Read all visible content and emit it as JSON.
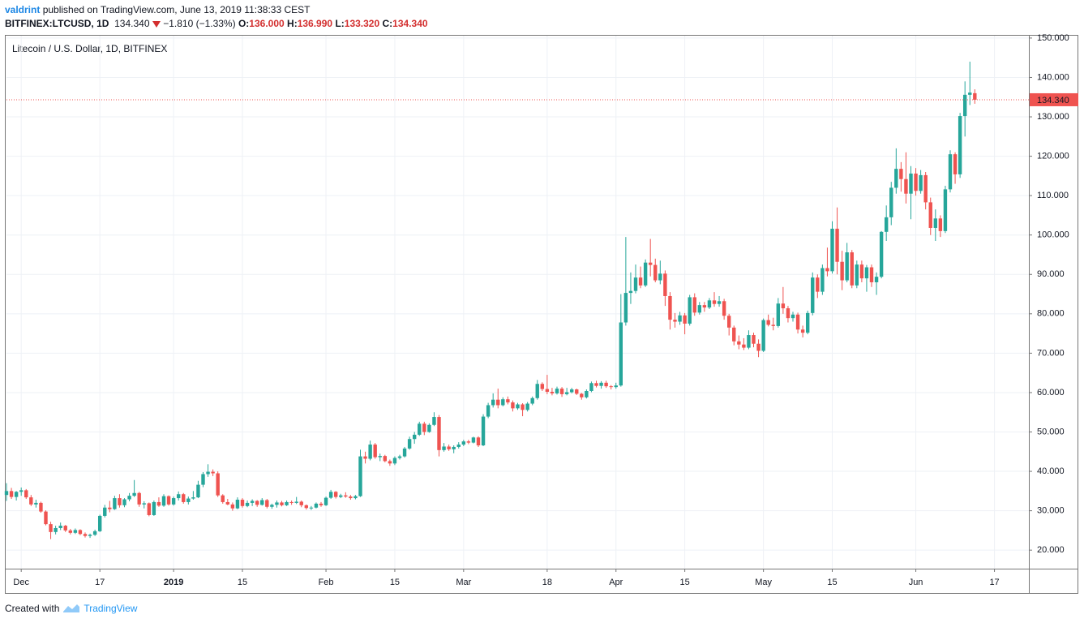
{
  "header": {
    "author": "valdrint",
    "published": "published on TradingView.com, June 13, 2019 11:38:33 CEST",
    "symbol": "BITFINEX:LTCUSD, 1D",
    "price": "134.340",
    "change": "−1.810 (−1.33%)",
    "ohlc": [
      {
        "key": "O:",
        "value": "136.000"
      },
      {
        "key": "H:",
        "value": "136.990"
      },
      {
        "key": "L:",
        "value": "133.320"
      },
      {
        "key": "C:",
        "value": "134.340"
      }
    ]
  },
  "footer": {
    "text": "Created with",
    "brand": "TradingView"
  },
  "chart_data": {
    "type": "candlestick",
    "title": "Litecoin / U.S. Dollar, 1D, BITFINEX",
    "up_color": "#26a69a",
    "down_color": "#ef5350",
    "grid": true,
    "x": [
      "2018-11-28",
      "2018-11-29",
      "2018-11-30",
      "2018-12-01",
      "2018-12-02",
      "2018-12-03",
      "2018-12-04",
      "2018-12-05",
      "2018-12-06",
      "2018-12-07",
      "2018-12-08",
      "2018-12-09",
      "2018-12-10",
      "2018-12-11",
      "2018-12-12",
      "2018-12-13",
      "2018-12-14",
      "2018-12-15",
      "2018-12-16",
      "2018-12-17",
      "2018-12-18",
      "2018-12-19",
      "2018-12-20",
      "2018-12-21",
      "2018-12-22",
      "2018-12-23",
      "2018-12-24",
      "2018-12-25",
      "2018-12-26",
      "2018-12-27",
      "2018-12-28",
      "2018-12-29",
      "2018-12-30",
      "2018-12-31",
      "2019-01-01",
      "2019-01-02",
      "2019-01-03",
      "2019-01-04",
      "2019-01-05",
      "2019-01-06",
      "2019-01-07",
      "2019-01-08",
      "2019-01-09",
      "2019-01-10",
      "2019-01-11",
      "2019-01-12",
      "2019-01-13",
      "2019-01-14",
      "2019-01-15",
      "2019-01-16",
      "2019-01-17",
      "2019-01-18",
      "2019-01-19",
      "2019-01-20",
      "2019-01-21",
      "2019-01-22",
      "2019-01-23",
      "2019-01-24",
      "2019-01-25",
      "2019-01-26",
      "2019-01-27",
      "2019-01-28",
      "2019-01-29",
      "2019-01-30",
      "2019-01-31",
      "2019-02-01",
      "2019-02-02",
      "2019-02-03",
      "2019-02-04",
      "2019-02-05",
      "2019-02-06",
      "2019-02-07",
      "2019-02-08",
      "2019-02-09",
      "2019-02-10",
      "2019-02-11",
      "2019-02-12",
      "2019-02-13",
      "2019-02-14",
      "2019-02-15",
      "2019-02-16",
      "2019-02-17",
      "2019-02-18",
      "2019-02-19",
      "2019-02-20",
      "2019-02-21",
      "2019-02-22",
      "2019-02-23",
      "2019-02-24",
      "2019-02-25",
      "2019-02-26",
      "2019-02-27",
      "2019-02-28",
      "2019-03-01",
      "2019-03-02",
      "2019-03-03",
      "2019-03-04",
      "2019-03-05",
      "2019-03-06",
      "2019-03-07",
      "2019-03-08",
      "2019-03-09",
      "2019-03-10",
      "2019-03-11",
      "2019-03-12",
      "2019-03-13",
      "2019-03-14",
      "2019-03-15",
      "2019-03-16",
      "2019-03-17",
      "2019-03-18",
      "2019-03-19",
      "2019-03-20",
      "2019-03-21",
      "2019-03-22",
      "2019-03-23",
      "2019-03-24",
      "2019-03-25",
      "2019-03-26",
      "2019-03-27",
      "2019-03-28",
      "2019-03-29",
      "2019-03-30",
      "2019-03-31",
      "2019-04-01",
      "2019-04-02",
      "2019-04-03",
      "2019-04-04",
      "2019-04-05",
      "2019-04-06",
      "2019-04-07",
      "2019-04-08",
      "2019-04-09",
      "2019-04-10",
      "2019-04-11",
      "2019-04-12",
      "2019-04-13",
      "2019-04-14",
      "2019-04-15",
      "2019-04-16",
      "2019-04-17",
      "2019-04-18",
      "2019-04-19",
      "2019-04-20",
      "2019-04-21",
      "2019-04-22",
      "2019-04-23",
      "2019-04-24",
      "2019-04-25",
      "2019-04-26",
      "2019-04-27",
      "2019-04-28",
      "2019-04-29",
      "2019-04-30",
      "2019-05-01",
      "2019-05-02",
      "2019-05-03",
      "2019-05-04",
      "2019-05-05",
      "2019-05-06",
      "2019-05-07",
      "2019-05-08",
      "2019-05-09",
      "2019-05-10",
      "2019-05-11",
      "2019-05-12",
      "2019-05-13",
      "2019-05-14",
      "2019-05-15",
      "2019-05-16",
      "2019-05-17",
      "2019-05-18",
      "2019-05-19",
      "2019-05-20",
      "2019-05-21",
      "2019-05-22",
      "2019-05-23",
      "2019-05-24",
      "2019-05-25",
      "2019-05-26",
      "2019-05-27",
      "2019-05-28",
      "2019-05-29",
      "2019-05-30",
      "2019-05-31",
      "2019-06-01",
      "2019-06-02",
      "2019-06-03",
      "2019-06-04",
      "2019-06-05",
      "2019-06-06",
      "2019-06-07",
      "2019-06-08",
      "2019-06-09",
      "2019-06-10",
      "2019-06-11",
      "2019-06-12",
      "2019-06-13"
    ],
    "open": [
      34.0,
      35.0,
      33.5,
      34.8,
      35.2,
      33.4,
      31.6,
      32.0,
      29.8,
      26.6,
      24.6,
      25.6,
      26.2,
      25.0,
      24.4,
      25.1,
      24.1,
      23.6,
      23.9,
      24.8,
      28.7,
      30.8,
      30.4,
      33.2,
      31.4,
      32.9,
      33.8,
      34.5,
      31.6,
      31.9,
      28.9,
      32.2,
      31.3,
      33.7,
      31.6,
      33.2,
      34.2,
      32.2,
      33.1,
      33.4,
      36.6,
      39.3,
      39.9,
      39.5,
      33.9,
      32.2,
      31.6,
      30.6,
      32.8,
      31.2,
      32.0,
      32.5,
      31.5,
      32.7,
      31.0,
      31.5,
      32.1,
      31.4,
      32.2,
      32.0,
      32.3,
      31.4,
      30.7,
      30.8,
      31.8,
      31.4,
      33.3,
      34.8,
      33.5,
      33.9,
      33.6,
      33.2,
      33.7,
      43.8,
      43.2,
      46.8,
      43.6,
      43.9,
      42.6,
      42.0,
      43.4,
      43.8,
      45.8,
      48.2,
      49.3,
      52.1,
      50.0,
      51.8,
      53.8,
      45.4,
      46.3,
      45.6,
      46.2,
      46.8,
      47.6,
      47.3,
      48.6,
      46.6,
      53.9,
      56.8,
      58.2,
      56.8,
      58.3,
      57.5,
      56.0,
      57.0,
      55.6,
      57.2,
      58.6,
      62.2,
      60.9,
      60.2,
      59.8,
      61.0,
      59.6,
      60.1,
      60.8,
      59.7,
      58.8,
      60.4,
      62.4,
      61.7,
      62.5,
      61.6,
      61.4,
      61.8,
      77.8,
      85.3,
      85.8,
      89.2,
      87.2,
      93.0,
      92.4,
      88.5,
      90.2,
      84.5,
      78.5,
      78.0,
      79.6,
      77.5,
      84.2,
      80.3,
      82.2,
      81.6,
      83.4,
      82.5,
      83.2,
      79.5,
      76.5,
      73.0,
      72.2,
      71.4,
      74.6,
      72.4,
      70.6,
      78.4,
      77.2,
      76.9,
      82.6,
      81.4,
      78.9,
      79.8,
      76.0,
      75.2,
      80.2,
      89.2,
      85.6,
      91.6,
      90.8,
      101.6,
      93.2,
      88.5,
      95.6,
      87.2,
      92.5,
      89.0,
      91.8,
      88.0,
      89.4,
      100.8,
      104.5,
      112.0,
      116.8,
      114.2,
      110.5,
      115.6,
      111.2,
      115.2,
      108.3,
      101.8,
      104.2,
      101.0,
      111.6,
      120.5,
      115.4,
      130.2,
      135.6,
      136.0
    ],
    "high": [
      37.0,
      35.8,
      35.0,
      35.9,
      35.5,
      34.0,
      32.8,
      32.3,
      30.1,
      27.2,
      26.2,
      27.0,
      26.4,
      25.4,
      25.5,
      25.3,
      24.5,
      24.2,
      25.2,
      29.0,
      31.5,
      32.5,
      33.8,
      34.2,
      33.2,
      34.5,
      37.8,
      34.8,
      32.4,
      32.1,
      32.6,
      33.4,
      34.2,
      33.9,
      33.6,
      34.9,
      34.5,
      33.6,
      35.0,
      37.6,
      39.8,
      41.8,
      40.5,
      40.0,
      34.2,
      33.0,
      32.1,
      33.4,
      33.2,
      32.6,
      32.9,
      32.7,
      33.2,
      33.0,
      31.8,
      32.6,
      32.5,
      32.6,
      32.6,
      33.5,
      32.6,
      31.6,
      31.2,
      32.1,
      32.2,
      33.6,
      35.3,
      35.0,
      34.3,
      34.7,
      34.0,
      34.0,
      45.5,
      45.0,
      47.8,
      47.2,
      44.5,
      44.2,
      43.0,
      43.8,
      44.2,
      46.2,
      48.8,
      50.0,
      52.6,
      52.6,
      52.2,
      55.0,
      54.3,
      47.2,
      46.8,
      46.6,
      47.4,
      48.0,
      48.0,
      48.8,
      48.9,
      54.5,
      57.4,
      59.8,
      61.0,
      58.8,
      59.0,
      58.0,
      57.4,
      57.3,
      57.6,
      59.0,
      63.2,
      62.6,
      64.5,
      61.2,
      61.5,
      61.4,
      61.2,
      61.2,
      61.0,
      59.9,
      60.8,
      62.8,
      63.0,
      62.9,
      63.0,
      61.9,
      62.5,
      85.0,
      99.5,
      90.5,
      92.5,
      92.0,
      93.8,
      99.0,
      94.0,
      93.5,
      91.0,
      85.5,
      80.2,
      80.5,
      80.2,
      84.8,
      85.2,
      83.0,
      83.0,
      84.0,
      85.5,
      84.5,
      83.8,
      80.0,
      77.0,
      74.5,
      73.8,
      75.8,
      75.2,
      73.5,
      78.8,
      79.8,
      79.0,
      84.0,
      86.8,
      82.0,
      80.5,
      80.3,
      77.0,
      80.8,
      90.5,
      90.0,
      92.5,
      96.8,
      103.5,
      107.0,
      96.0,
      98.0,
      96.2,
      93.5,
      93.5,
      92.4,
      92.5,
      90.5,
      101.0,
      107.5,
      113.5,
      122.0,
      118.5,
      121.0,
      117.5,
      117.0,
      116.5,
      116.0,
      109.5,
      106.5,
      105.0,
      112.5,
      121.5,
      121.0,
      131.0,
      139.0,
      144.0,
      136.99
    ],
    "low": [
      32.5,
      33.0,
      32.6,
      33.8,
      33.0,
      31.2,
      30.8,
      29.5,
      26.3,
      22.8,
      24.0,
      25.1,
      24.6,
      24.0,
      24.1,
      23.8,
      23.2,
      23.1,
      23.6,
      24.6,
      28.3,
      29.6,
      30.2,
      30.8,
      30.9,
      32.4,
      33.5,
      31.0,
      30.6,
      28.6,
      28.7,
      31.0,
      31.0,
      31.3,
      31.3,
      32.6,
      31.8,
      31.6,
      32.8,
      33.2,
      36.0,
      38.6,
      38.8,
      33.5,
      31.8,
      31.4,
      30.0,
      30.4,
      30.8,
      30.9,
      31.2,
      31.0,
      31.3,
      30.6,
      30.5,
      30.8,
      31.1,
      31.2,
      31.5,
      31.7,
      30.9,
      30.3,
      30.2,
      30.6,
      31.0,
      31.2,
      33.0,
      33.1,
      33.2,
      33.3,
      32.8,
      32.9,
      33.5,
      42.0,
      42.8,
      43.2,
      42.6,
      42.3,
      41.4,
      41.6,
      43.0,
      43.5,
      45.5,
      47.0,
      49.0,
      49.2,
      49.8,
      51.5,
      43.8,
      45.0,
      45.2,
      44.6,
      45.8,
      46.4,
      46.9,
      47.1,
      46.2,
      46.4,
      53.5,
      56.2,
      56.0,
      56.5,
      57.0,
      55.2,
      55.6,
      54.0,
      55.2,
      56.8,
      58.2,
      60.4,
      59.6,
      59.3,
      59.5,
      58.9,
      59.3,
      59.8,
      59.4,
      58.2,
      58.5,
      60.1,
      61.3,
      61.0,
      61.2,
      60.8,
      61.0,
      61.5,
      77.0,
      82.5,
      85.2,
      86.5,
      86.8,
      89.5,
      88.0,
      87.5,
      82.0,
      76.0,
      76.5,
      77.2,
      74.8,
      77.0,
      79.5,
      79.8,
      80.5,
      81.2,
      81.8,
      81.8,
      78.5,
      74.5,
      72.0,
      71.0,
      70.8,
      71.0,
      71.5,
      69.0,
      70.3,
      76.8,
      75.8,
      76.5,
      80.0,
      77.8,
      78.0,
      75.0,
      74.0,
      74.8,
      79.6,
      84.0,
      84.8,
      89.5,
      90.2,
      90.0,
      86.0,
      88.0,
      86.5,
      86.5,
      88.0,
      85.6,
      86.8,
      84.8,
      89.0,
      98.5,
      102.5,
      110.5,
      111.0,
      108.0,
      104.0,
      110.0,
      110.5,
      106.5,
      100.0,
      98.5,
      99.5,
      100.5,
      110.8,
      113.0,
      114.5,
      125.0,
      133.0,
      133.32
    ],
    "close": [
      35.0,
      33.5,
      34.8,
      35.2,
      33.4,
      31.6,
      32.0,
      29.8,
      26.6,
      24.6,
      25.6,
      26.2,
      25.0,
      24.4,
      25.1,
      24.1,
      23.6,
      23.9,
      24.8,
      28.7,
      30.8,
      30.4,
      33.2,
      31.4,
      32.9,
      33.8,
      34.5,
      31.6,
      31.9,
      28.9,
      32.2,
      31.3,
      33.7,
      31.6,
      33.2,
      34.2,
      32.2,
      33.1,
      33.4,
      36.6,
      39.3,
      39.9,
      39.5,
      33.9,
      32.2,
      31.6,
      30.6,
      32.8,
      31.2,
      32.0,
      32.5,
      31.5,
      32.7,
      31.0,
      31.5,
      32.1,
      31.4,
      32.2,
      32.0,
      32.3,
      31.4,
      30.7,
      30.8,
      31.8,
      31.4,
      33.3,
      34.8,
      33.5,
      33.9,
      33.6,
      33.2,
      33.7,
      43.8,
      43.2,
      46.8,
      43.6,
      43.9,
      42.6,
      42.0,
      43.4,
      43.8,
      45.8,
      48.2,
      49.3,
      52.1,
      50.0,
      51.8,
      53.8,
      45.4,
      46.3,
      45.6,
      46.2,
      46.8,
      47.6,
      47.3,
      48.6,
      46.6,
      53.9,
      56.8,
      58.2,
      56.8,
      58.3,
      57.5,
      56.0,
      57.0,
      55.6,
      57.2,
      58.6,
      62.2,
      60.9,
      60.2,
      59.8,
      61.0,
      59.6,
      60.1,
      60.8,
      59.7,
      58.8,
      60.4,
      62.4,
      61.7,
      62.5,
      61.6,
      61.4,
      61.8,
      77.8,
      85.3,
      85.8,
      89.2,
      87.2,
      93.0,
      92.4,
      88.5,
      90.2,
      84.5,
      78.5,
      78.0,
      79.6,
      77.5,
      84.2,
      80.3,
      82.2,
      81.6,
      83.4,
      82.5,
      83.2,
      79.5,
      76.5,
      73.0,
      72.2,
      71.4,
      74.6,
      72.4,
      70.6,
      78.4,
      77.2,
      76.9,
      82.6,
      81.4,
      78.9,
      79.8,
      76.0,
      75.2,
      80.2,
      89.2,
      85.6,
      91.6,
      90.8,
      101.6,
      93.2,
      88.5,
      95.6,
      87.2,
      92.5,
      89.0,
      91.8,
      88.0,
      89.4,
      100.8,
      104.5,
      112.0,
      116.8,
      114.2,
      110.5,
      115.6,
      111.2,
      115.2,
      108.3,
      101.8,
      104.2,
      101.0,
      111.6,
      120.5,
      115.4,
      130.2,
      135.6,
      136.15,
      134.34
    ],
    "xlim": [
      "2018-11-28",
      "2019-06-24"
    ],
    "xticks": [
      {
        "value": "2018-12-01",
        "label": "Dec"
      },
      {
        "value": "2018-12-17",
        "label": "17"
      },
      {
        "value": "2019-01-01",
        "label": "2019"
      },
      {
        "value": "2019-01-15",
        "label": "15"
      },
      {
        "value": "2019-02-01",
        "label": "Feb"
      },
      {
        "value": "2019-02-15",
        "label": "15"
      },
      {
        "value": "2019-03-01",
        "label": "Mar"
      },
      {
        "value": "2019-03-18",
        "label": "18"
      },
      {
        "value": "2019-04-01",
        "label": "Apr"
      },
      {
        "value": "2019-04-15",
        "label": "15"
      },
      {
        "value": "2019-05-01",
        "label": "May"
      },
      {
        "value": "2019-05-15",
        "label": "15"
      },
      {
        "value": "2019-06-01",
        "label": "Jun"
      },
      {
        "value": "2019-06-17",
        "label": "17"
      }
    ],
    "ylim": [
      15.3,
      150.6
    ],
    "yticks": [
      {
        "value": 20,
        "label": "20.000"
      },
      {
        "value": 30,
        "label": "30.000"
      },
      {
        "value": 40,
        "label": "40.000"
      },
      {
        "value": 50,
        "label": "50.000"
      },
      {
        "value": 60,
        "label": "60.000"
      },
      {
        "value": 70,
        "label": "70.000"
      },
      {
        "value": 80,
        "label": "80.000"
      },
      {
        "value": 90,
        "label": "90.000"
      },
      {
        "value": 100,
        "label": "100.000"
      },
      {
        "value": 110,
        "label": "110.000"
      },
      {
        "value": 120,
        "label": "120.000"
      },
      {
        "value": 130,
        "label": "130.000"
      },
      {
        "value": 140,
        "label": "140.000"
      },
      {
        "value": 150,
        "label": "150.000"
      }
    ],
    "price_line": {
      "value": 134.34,
      "label": "134.340",
      "color": "#ef5350"
    }
  }
}
